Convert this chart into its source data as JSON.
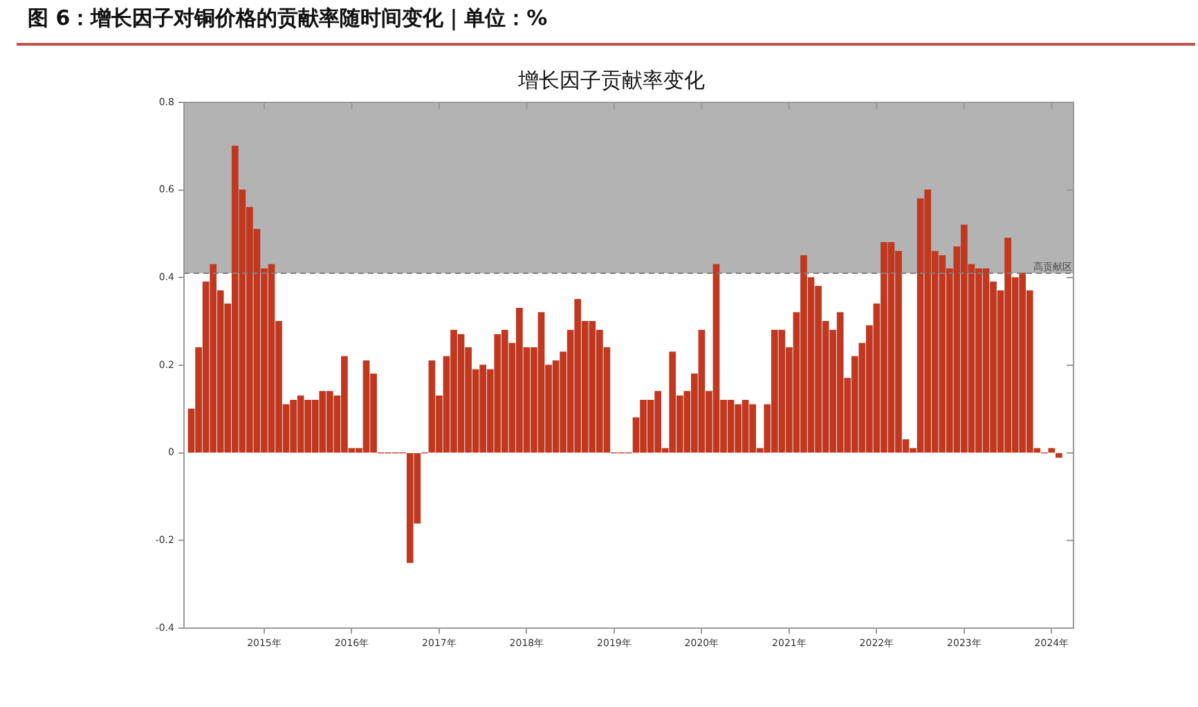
{
  "chart_data": {
    "type": "bar",
    "title": "图 6：增长因子对铜价格的贡献率随时间变化｜单位：%",
    "subtitle": "增长因子贡献率变化",
    "x": [
      "2014-03",
      "2014-04",
      "2014-05",
      "2014-06",
      "2014-07",
      "2014-08",
      "2014-09",
      "2014-10",
      "2014-11",
      "2014-12",
      "2015-01",
      "2015-02",
      "2015-03",
      "2015-04",
      "2015-05",
      "2015-06",
      "2015-07",
      "2015-08",
      "2015-09",
      "2015-10",
      "2015-11",
      "2015-12",
      "2016-01",
      "2016-02",
      "2016-03",
      "2016-04",
      "2016-05",
      "2016-06",
      "2016-07",
      "2016-08",
      "2016-09",
      "2016-10",
      "2016-11",
      "2016-12",
      "2017-01",
      "2017-02",
      "2017-03",
      "2017-04",
      "2017-05",
      "2017-06",
      "2017-07",
      "2017-08",
      "2017-09",
      "2017-10",
      "2017-11",
      "2017-12",
      "2018-01",
      "2018-02",
      "2018-03",
      "2018-04",
      "2018-05",
      "2018-06",
      "2018-07",
      "2018-08",
      "2018-09",
      "2018-10",
      "2018-11",
      "2018-12",
      "2019-01",
      "2019-02",
      "2019-03",
      "2019-04",
      "2019-05",
      "2019-06",
      "2019-07",
      "2019-08",
      "2019-09",
      "2019-10",
      "2019-11",
      "2019-12",
      "2020-01",
      "2020-02",
      "2020-03",
      "2020-04",
      "2020-05",
      "2020-06",
      "2020-07",
      "2020-08",
      "2020-09",
      "2020-10",
      "2020-11",
      "2020-12",
      "2021-01",
      "2021-02",
      "2021-03",
      "2021-04",
      "2021-05",
      "2021-06",
      "2021-07",
      "2021-08",
      "2021-09",
      "2021-10",
      "2021-11",
      "2021-12",
      "2022-01",
      "2022-02",
      "2022-03",
      "2022-04",
      "2022-05",
      "2022-06",
      "2022-07",
      "2022-08",
      "2022-09",
      "2022-10",
      "2022-11",
      "2022-12",
      "2023-01",
      "2023-02",
      "2023-03",
      "2023-04",
      "2023-05",
      "2023-06",
      "2023-07",
      "2023-08",
      "2023-09",
      "2023-10",
      "2023-11",
      "2023-12",
      "2024-01",
      "2024-02"
    ],
    "values": [
      0.1,
      0.24,
      0.39,
      0.43,
      0.37,
      0.34,
      0.7,
      0.6,
      0.56,
      0.51,
      0.42,
      0.43,
      0.3,
      0.11,
      0.12,
      0.13,
      0.12,
      0.12,
      0.14,
      0.14,
      0.13,
      0.22,
      0.01,
      0.01,
      0.21,
      0.18,
      0,
      0,
      0,
      0,
      -0.25,
      -0.16,
      0,
      0.21,
      0.13,
      0.22,
      0.28,
      0.27,
      0.24,
      0.19,
      0.2,
      0.19,
      0.27,
      0.28,
      0.25,
      0.33,
      0.24,
      0.24,
      0.32,
      0.2,
      0.21,
      0.23,
      0.28,
      0.35,
      0.3,
      0.3,
      0.28,
      0.24,
      0,
      0,
      0,
      0.08,
      0.12,
      0.12,
      0.14,
      0.01,
      0.23,
      0.13,
      0.14,
      0.18,
      0.28,
      0.14,
      0.43,
      0.12,
      0.12,
      0.11,
      0.12,
      0.11,
      0.01,
      0.11,
      0.28,
      0.28,
      0.24,
      0.32,
      0.45,
      0.4,
      0.38,
      0.3,
      0.28,
      0.32,
      0.17,
      0.22,
      0.25,
      0.29,
      0.34,
      0.48,
      0.48,
      0.46,
      0.03,
      0.01,
      0.58,
      0.6,
      0.46,
      0.45,
      0.42,
      0.47,
      0.52,
      0.43,
      0.42,
      0.42,
      0.39,
      0.37,
      0.49,
      0.4,
      0.41,
      0.37,
      0.01,
      0,
      0.01,
      -0.01
    ],
    "color": "#c0381f",
    "xlim": [
      "2014-02",
      "2024-04"
    ],
    "xticks": [
      {
        "value": "2015-01",
        "label": "2015年"
      },
      {
        "value": "2016-01",
        "label": "2016年"
      },
      {
        "value": "2017-01",
        "label": "2017年"
      },
      {
        "value": "2018-01",
        "label": "2018年"
      },
      {
        "value": "2019-01",
        "label": "2019年"
      },
      {
        "value": "2020-01",
        "label": "2020年"
      },
      {
        "value": "2021-01",
        "label": "2021年"
      },
      {
        "value": "2022-01",
        "label": "2022年"
      },
      {
        "value": "2023-01",
        "label": "2023年"
      },
      {
        "value": "2024-01",
        "label": "2024年"
      }
    ],
    "ylim": [
      -0.4,
      0.8
    ],
    "yticks": [
      -0.4,
      -0.2,
      0,
      0.2,
      0.4,
      0.6,
      0.8
    ],
    "bands": [
      {
        "axis": "y",
        "from": 0.41,
        "to": 0.8,
        "label": "高贡献区",
        "color": "#b3b3b3"
      }
    ],
    "ref_lines": [
      {
        "axis": "y",
        "value": 0.41,
        "color": "#808080",
        "line_style": "dashed"
      }
    ],
    "grid": false,
    "legend": false
  }
}
